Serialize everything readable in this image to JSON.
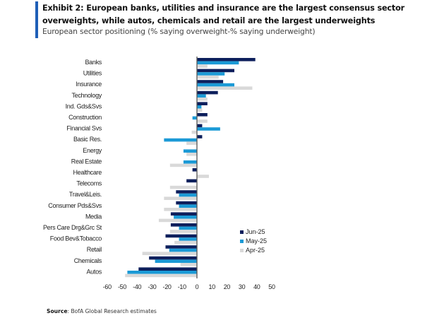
{
  "header": {
    "title": "Exhibit 2: European banks, utilities and insurance are the largest consensus sector overweights, while autos, chemicals and retail are the largest underweights",
    "subtitle": "European sector positioning (% saying overweight-% saying underweight)",
    "accent_color": "#1f5fb7"
  },
  "footer": {
    "source_label": "Source",
    "source_text": ": BofA Global Research estimates"
  },
  "chart_data": {
    "type": "bar",
    "orientation": "horizontal",
    "title": "European sector positioning (% saying overweight-% saying underweight)",
    "xlabel": "",
    "ylabel": "",
    "xlim": [
      -60,
      50
    ],
    "xticks": [
      -60,
      -50,
      -40,
      -30,
      -20,
      -10,
      0,
      10,
      20,
      30,
      40,
      50
    ],
    "grid": false,
    "legend_position": "bottom-right",
    "categories": [
      "Banks",
      "Utilities",
      "Insurance",
      "Technology",
      "Ind. Gds&Svs",
      "Construction",
      "Financial Svs",
      "Basic Res.",
      "Energy",
      "Real Estate",
      "Healthcare",
      "Telecoms",
      "Travel&Leis.",
      "Consumer Pds&Svs",
      "Media",
      "Pers Care Drg&Grc St",
      "Food Bev&Tobacco",
      "Retail",
      "Chemicals",
      "Autos"
    ],
    "series": [
      {
        "name": "Jun-25",
        "color": "#0d1f5c",
        "values": [
          39,
          25,
          17.5,
          14,
          7,
          7,
          3.5,
          3.5,
          0,
          0,
          -3,
          -7,
          -14,
          -14,
          -17.5,
          -17.5,
          -21,
          -21,
          -32,
          -39
        ]
      },
      {
        "name": "May-25",
        "color": "#1b9ad6",
        "values": [
          28,
          18.5,
          25,
          6,
          3,
          -3,
          15.5,
          -22,
          -9,
          -9,
          0,
          0,
          -12,
          -12,
          -15.5,
          -12,
          -12,
          -18.5,
          -28,
          -46.5
        ]
      },
      {
        "name": "Apr-25",
        "color": "#d9d9d9",
        "values": [
          7,
          14.5,
          37,
          7,
          3.5,
          7,
          -3.5,
          -7,
          -7,
          -18,
          8,
          -18,
          -22,
          -22,
          -25.5,
          -18,
          -15,
          -36.5,
          -11,
          -48
        ]
      }
    ]
  }
}
